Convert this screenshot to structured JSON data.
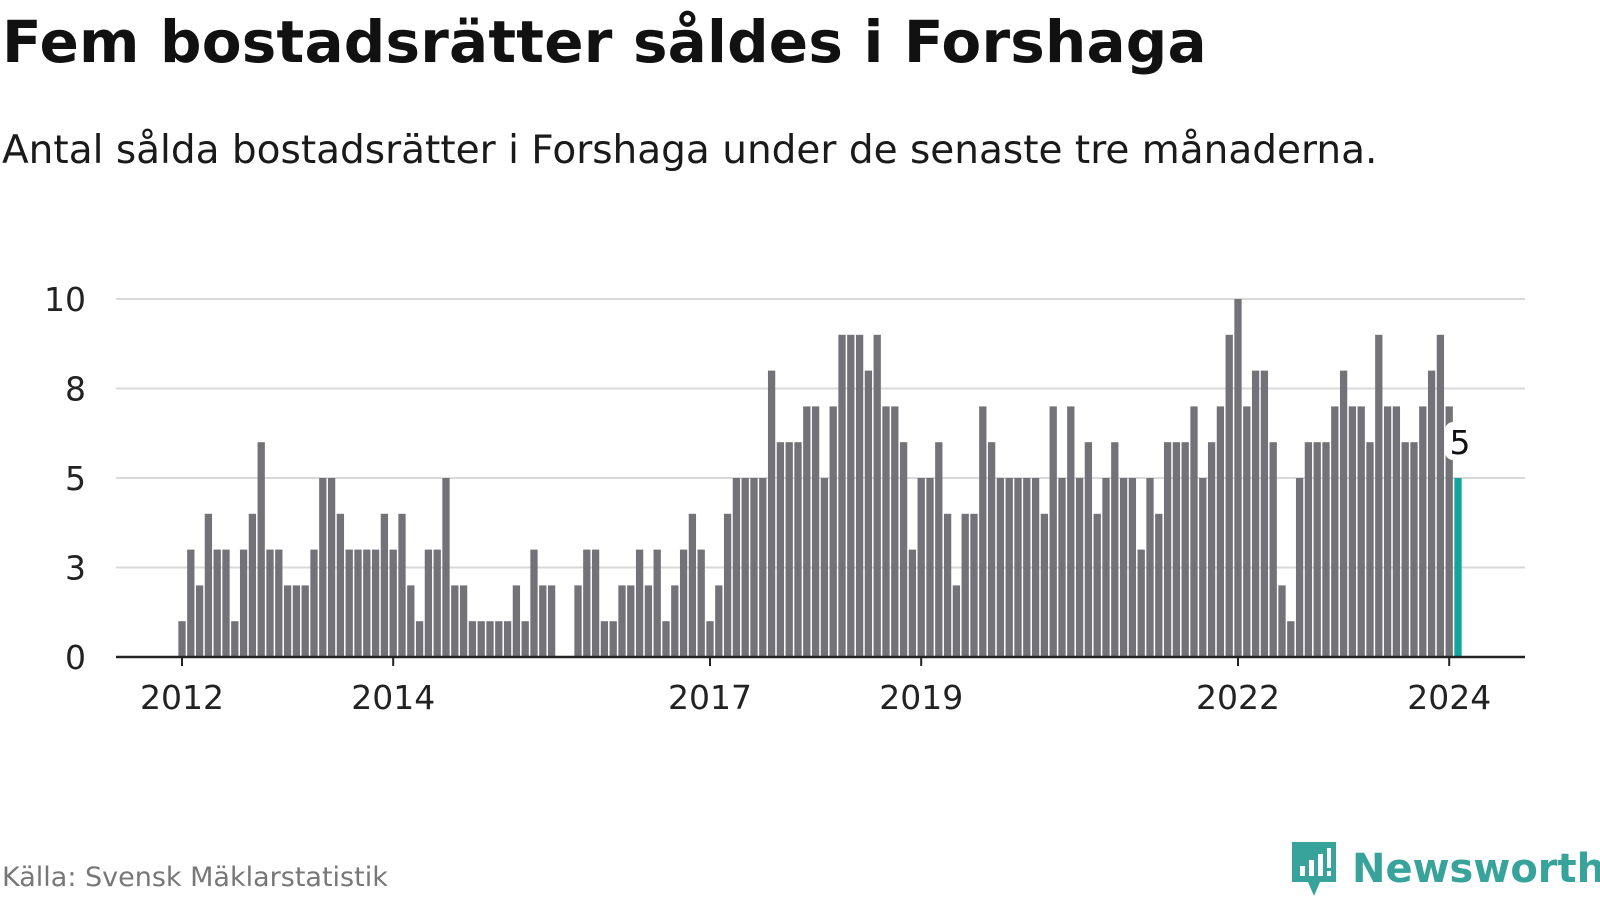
{
  "title": "Fem bostadsrätter såldes i Forshaga",
  "subtitle": "Antal sålda bostadsrätter i Forshaga under de senaste tre månaderna.",
  "source": "Källa: Svensk Mäklarstatistik",
  "brand": {
    "name": "Newsworthy",
    "icon": "newsworthy-logo-icon",
    "color": "#37a39a"
  },
  "colors": {
    "bar": "#737278",
    "highlight": "#12a59c",
    "grid": "#d9d9d9",
    "axis": "#222222"
  },
  "chart_data": {
    "type": "bar",
    "title": "Fem bostadsrätter såldes i Forshaga",
    "xlabel": "",
    "ylabel": "",
    "ylim": [
      0,
      10
    ],
    "yticks": [
      "0",
      "3",
      "5",
      "8",
      "10"
    ],
    "ytick_values": [
      0,
      2.5,
      5,
      7.5,
      10
    ],
    "xticks": [
      {
        "label": "2012",
        "index": 0
      },
      {
        "label": "2014",
        "index": 24
      },
      {
        "label": "2017",
        "index": 60
      },
      {
        "label": "2019",
        "index": 84
      },
      {
        "label": "2022",
        "index": 120
      },
      {
        "label": "2024",
        "index": 144
      }
    ],
    "start": "2012-01",
    "granularity": "month",
    "values": [
      1,
      3,
      2,
      4,
      3,
      3,
      1,
      3,
      4,
      6,
      3,
      3,
      2,
      2,
      2,
      3,
      5,
      5,
      4,
      3,
      3,
      3,
      3,
      4,
      3,
      4,
      2,
      1,
      3,
      3,
      5,
      2,
      2,
      1,
      1,
      1,
      1,
      1,
      2,
      1,
      3,
      2,
      2,
      0,
      0,
      2,
      3,
      3,
      1,
      1,
      2,
      2,
      3,
      2,
      3,
      1,
      2,
      3,
      4,
      3,
      1,
      2,
      4,
      5,
      5,
      5,
      5,
      8,
      6,
      6,
      6,
      7,
      7,
      5,
      7,
      9,
      9,
      9,
      8,
      9,
      7,
      7,
      6,
      3,
      5,
      5,
      6,
      4,
      2,
      4,
      4,
      7,
      6,
      5,
      5,
      5,
      5,
      5,
      4,
      7,
      5,
      7,
      5,
      6,
      4,
      5,
      6,
      5,
      5,
      3,
      5,
      4,
      6,
      6,
      6,
      7,
      5,
      6,
      7,
      9,
      10,
      7,
      8,
      8,
      6,
      2,
      1,
      5,
      6,
      6,
      6,
      7,
      8,
      7,
      7,
      6,
      9,
      7,
      7,
      6,
      6,
      7,
      8,
      9,
      7,
      5
    ],
    "highlight_index": 145,
    "highlight_label": "5"
  }
}
